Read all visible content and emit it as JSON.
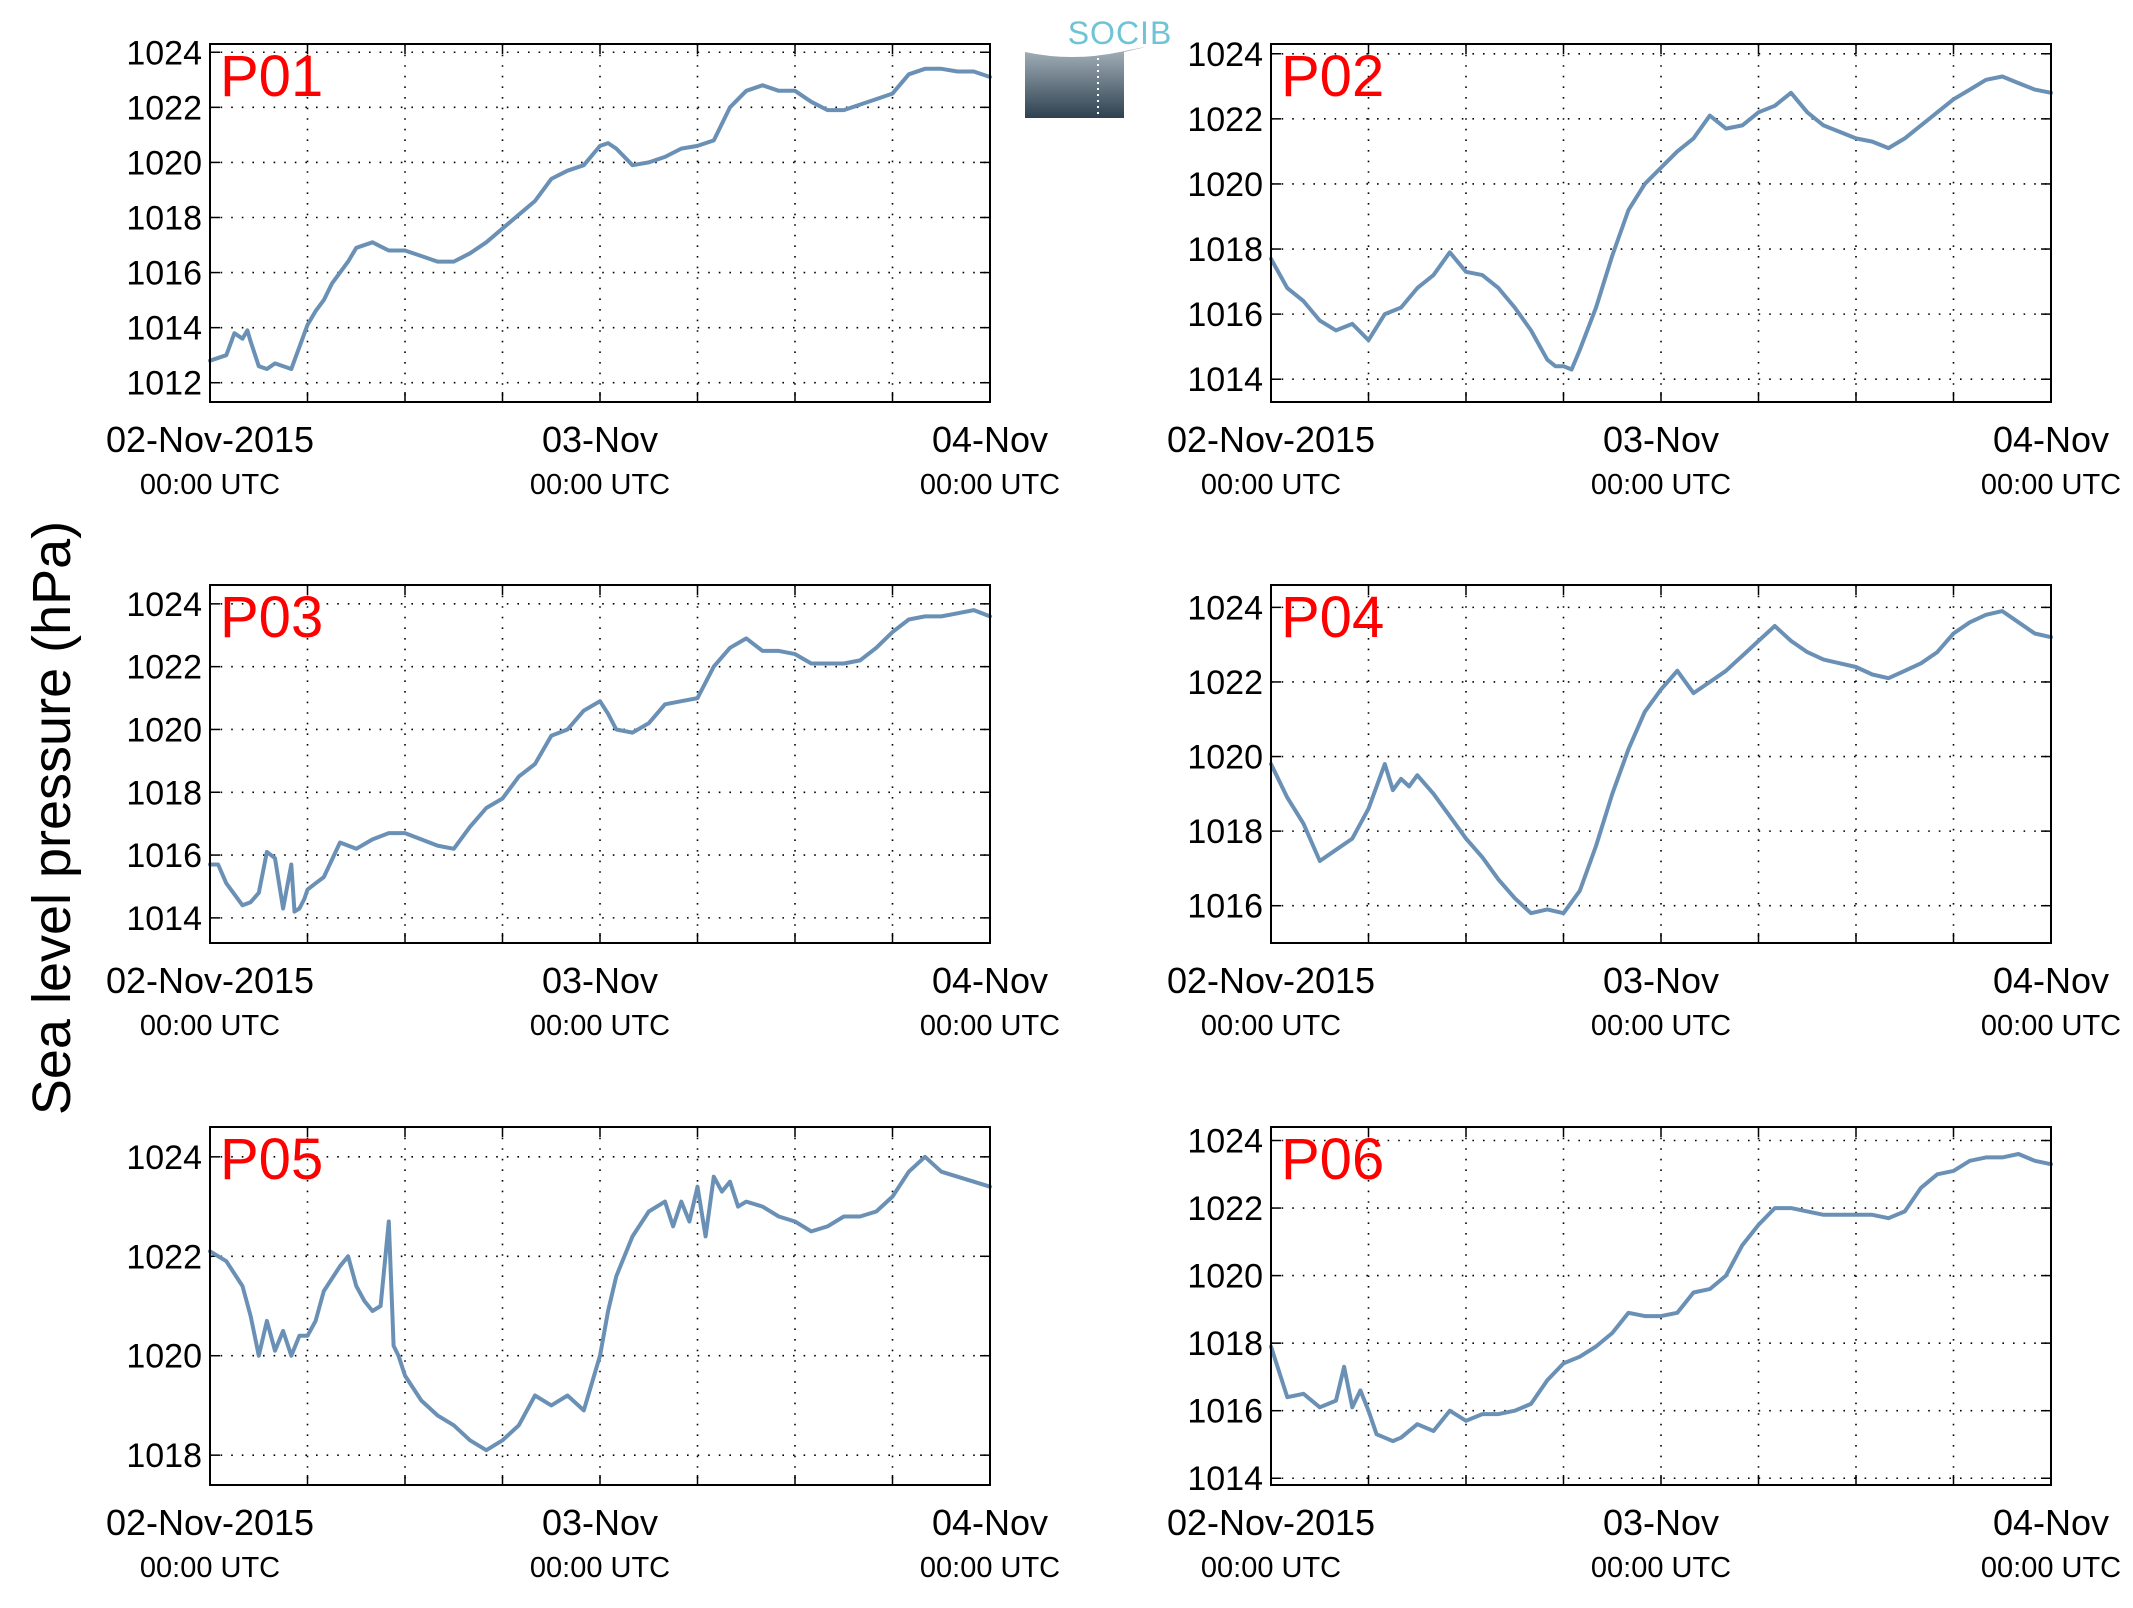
{
  "figure": {
    "ylabel": "Sea level pressure (hPa)",
    "logo_text": "SOCIB",
    "line_color": "#6a91b5",
    "label_color": "#ff0000",
    "x_tick_labels": [
      {
        "date": "02-Nov-2015",
        "time": "00:00 UTC"
      },
      {
        "date": "03-Nov",
        "time": "00:00 UTC"
      },
      {
        "date": "04-Nov",
        "time": "00:00 UTC"
      }
    ]
  },
  "chart_data": [
    {
      "type": "line",
      "label": "P01",
      "xlim": [
        0,
        48
      ],
      "ylim": [
        1011.3,
        1024.3
      ],
      "yticks": [
        1012,
        1014,
        1016,
        1018,
        1020,
        1022,
        1024
      ],
      "x_unit": "hours since 02-Nov-2015 00:00 UTC",
      "series": [
        {
          "x": [
            0,
            1,
            1.5,
            2,
            2.3,
            2.5,
            3,
            3.5,
            4,
            5,
            6,
            6.5,
            7,
            7.5,
            8,
            8.5,
            9,
            10,
            11,
            12,
            13,
            14,
            15,
            16,
            17,
            18,
            19,
            20,
            21,
            22,
            23,
            24,
            24.5,
            25,
            26,
            27,
            28,
            29,
            30,
            31,
            32,
            33,
            34,
            35,
            36,
            37,
            38,
            39,
            40,
            41,
            42,
            43,
            44,
            45,
            46,
            47,
            48
          ],
          "y": [
            1012.8,
            1013,
            1013.8,
            1013.6,
            1013.9,
            1013.5,
            1012.6,
            1012.5,
            1012.7,
            1012.5,
            1014.1,
            1014.6,
            1015,
            1015.6,
            1016,
            1016.4,
            1016.9,
            1017.1,
            1016.8,
            1016.8,
            1016.6,
            1016.4,
            1016.4,
            1016.7,
            1017.1,
            1017.6,
            1018.1,
            1018.6,
            1019.4,
            1019.7,
            1019.9,
            1020.6,
            1020.7,
            1020.5,
            1019.9,
            1020,
            1020.2,
            1020.5,
            1020.6,
            1020.8,
            1022,
            1022.6,
            1022.8,
            1022.6,
            1022.6,
            1022.2,
            1021.9,
            1021.9,
            1022.1,
            1022.3,
            1022.5,
            1023.2,
            1023.4,
            1023.4,
            1023.3,
            1023.3,
            1023.1
          ]
        }
      ]
    },
    {
      "type": "line",
      "label": "P02",
      "xlim": [
        0,
        48
      ],
      "ylim": [
        1013.3,
        1024.3
      ],
      "yticks": [
        1014,
        1016,
        1018,
        1020,
        1022,
        1024
      ],
      "x_unit": "hours since 02-Nov-2015 00:00 UTC",
      "series": [
        {
          "x": [
            0,
            1,
            2,
            3,
            4,
            5,
            6,
            7,
            8,
            9,
            10,
            11,
            12,
            13,
            14,
            15,
            16,
            17,
            17.5,
            18,
            18.5,
            19,
            20,
            21,
            22,
            23,
            24,
            25,
            26,
            27,
            28,
            29,
            30,
            31,
            32,
            33,
            34,
            35,
            36,
            37,
            38,
            39,
            40,
            41,
            42,
            43,
            44,
            45,
            46,
            47,
            48
          ],
          "y": [
            1017.7,
            1016.8,
            1016.4,
            1015.8,
            1015.5,
            1015.7,
            1015.2,
            1016,
            1016.2,
            1016.8,
            1017.2,
            1017.9,
            1017.3,
            1017.2,
            1016.8,
            1016.2,
            1015.5,
            1014.6,
            1014.4,
            1014.4,
            1014.3,
            1014.9,
            1016.2,
            1017.8,
            1019.2,
            1020,
            1020.5,
            1021,
            1021.4,
            1022.1,
            1021.7,
            1021.8,
            1022.2,
            1022.4,
            1022.8,
            1022.2,
            1021.8,
            1021.6,
            1021.4,
            1021.3,
            1021.1,
            1021.4,
            1021.8,
            1022.2,
            1022.6,
            1022.9,
            1023.2,
            1023.3,
            1023.1,
            1022.9,
            1022.8
          ]
        }
      ]
    },
    {
      "type": "line",
      "label": "P03",
      "xlim": [
        0,
        48
      ],
      "ylim": [
        1013.2,
        1024.6
      ],
      "yticks": [
        1014,
        1016,
        1018,
        1020,
        1022,
        1024
      ],
      "x_unit": "hours since 02-Nov-2015 00:00 UTC",
      "series": [
        {
          "x": [
            0,
            0.5,
            1,
            2,
            2.5,
            3,
            3.5,
            4,
            4.5,
            5,
            5.2,
            5.5,
            5.8,
            6,
            6.5,
            7,
            8,
            9,
            10,
            11,
            12,
            13,
            14,
            15,
            16,
            17,
            18,
            19,
            20,
            21,
            22,
            23,
            24,
            24.5,
            25,
            26,
            27,
            28,
            29,
            30,
            31,
            32,
            33,
            34,
            35,
            36,
            37,
            38,
            39,
            40,
            41,
            42,
            43,
            44,
            45,
            46,
            47,
            48
          ],
          "y": [
            1015.7,
            1015.7,
            1015.1,
            1014.4,
            1014.5,
            1014.8,
            1016.1,
            1015.9,
            1014.3,
            1015.7,
            1014.2,
            1014.3,
            1014.6,
            1014.9,
            1015.1,
            1015.3,
            1016.4,
            1016.2,
            1016.5,
            1016.7,
            1016.7,
            1016.5,
            1016.3,
            1016.2,
            1016.9,
            1017.5,
            1017.8,
            1018.5,
            1018.9,
            1019.8,
            1020,
            1020.6,
            1020.9,
            1020.5,
            1020,
            1019.9,
            1020.2,
            1020.8,
            1020.9,
            1021,
            1022,
            1022.6,
            1022.9,
            1022.5,
            1022.5,
            1022.4,
            1022.1,
            1022.1,
            1022.1,
            1022.2,
            1022.6,
            1023.1,
            1023.5,
            1023.6,
            1023.6,
            1023.7,
            1023.8,
            1023.6
          ]
        }
      ]
    },
    {
      "type": "line",
      "label": "P04",
      "xlim": [
        0,
        48
      ],
      "ylim": [
        1015,
        1024.6
      ],
      "yticks": [
        1016,
        1018,
        1020,
        1022,
        1024
      ],
      "x_unit": "hours since 02-Nov-2015 00:00 UTC",
      "series": [
        {
          "x": [
            0,
            1,
            2,
            3,
            4,
            5,
            6,
            7,
            7.5,
            8,
            8.5,
            9,
            10,
            11,
            12,
            13,
            14,
            15,
            16,
            17,
            18,
            19,
            20,
            21,
            22,
            23,
            24,
            25,
            26,
            27,
            28,
            28.5,
            29,
            30,
            31,
            32,
            33,
            34,
            35,
            36,
            37,
            38,
            39,
            40,
            41,
            42,
            43,
            44,
            45,
            46,
            47,
            48
          ],
          "y": [
            1019.8,
            1018.9,
            1018.2,
            1017.2,
            1017.5,
            1017.8,
            1018.6,
            1019.8,
            1019.1,
            1019.4,
            1019.2,
            1019.5,
            1019,
            1018.4,
            1017.8,
            1017.3,
            1016.7,
            1016.2,
            1015.8,
            1015.9,
            1015.8,
            1016.4,
            1017.6,
            1019,
            1020.2,
            1021.2,
            1021.8,
            1022.3,
            1021.7,
            1022,
            1022.3,
            1022.5,
            1022.7,
            1023.1,
            1023.5,
            1023.1,
            1022.8,
            1022.6,
            1022.5,
            1022.4,
            1022.2,
            1022.1,
            1022.3,
            1022.5,
            1022.8,
            1023.3,
            1023.6,
            1023.8,
            1023.9,
            1023.6,
            1023.3,
            1023.2
          ]
        }
      ]
    },
    {
      "type": "line",
      "label": "P05",
      "xlim": [
        0,
        48
      ],
      "ylim": [
        1017.4,
        1024.6
      ],
      "yticks": [
        1018,
        1020,
        1022,
        1024
      ],
      "x_unit": "hours since 02-Nov-2015 00:00 UTC",
      "series": [
        {
          "x": [
            0,
            1,
            2,
            2.5,
            3,
            3.5,
            4,
            4.5,
            5,
            5.5,
            6,
            6.5,
            7,
            8,
            8.5,
            9,
            9.5,
            10,
            10.5,
            11,
            11.3,
            11.6,
            12,
            13,
            14,
            15,
            16,
            17,
            18,
            19,
            20,
            21,
            22,
            23,
            24,
            24.5,
            25,
            26,
            27,
            28,
            28.5,
            29,
            29.5,
            30,
            30.5,
            31,
            31.5,
            32,
            32.5,
            33,
            34,
            35,
            36,
            37,
            38,
            39,
            40,
            41,
            42,
            43,
            44,
            45,
            46,
            47,
            48
          ],
          "y": [
            1022.1,
            1021.9,
            1021.4,
            1020.8,
            1020,
            1020.7,
            1020.1,
            1020.5,
            1020,
            1020.4,
            1020.4,
            1020.7,
            1021.3,
            1021.8,
            1022,
            1021.4,
            1021.1,
            1020.9,
            1021,
            1022.7,
            1020.2,
            1020,
            1019.6,
            1019.1,
            1018.8,
            1018.6,
            1018.3,
            1018.1,
            1018.3,
            1018.6,
            1019.2,
            1019,
            1019.2,
            1018.9,
            1020,
            1020.9,
            1021.6,
            1022.4,
            1022.9,
            1023.1,
            1022.6,
            1023.1,
            1022.7,
            1023.4,
            1022.4,
            1023.6,
            1023.3,
            1023.5,
            1023,
            1023.1,
            1023,
            1022.8,
            1022.7,
            1022.5,
            1022.6,
            1022.8,
            1022.8,
            1022.9,
            1023.2,
            1023.7,
            1024,
            1023.7,
            1023.6,
            1023.5,
            1023.4
          ]
        }
      ]
    },
    {
      "type": "line",
      "label": "P06",
      "xlim": [
        0,
        48
      ],
      "ylim": [
        1013.8,
        1024.4
      ],
      "yticks": [
        1014,
        1016,
        1018,
        1020,
        1022,
        1024
      ],
      "x_unit": "hours since 02-Nov-2015 00:00 UTC",
      "series": [
        {
          "x": [
            0,
            1,
            2,
            3,
            4,
            4.5,
            5,
            5.5,
            6,
            6.5,
            7,
            7.5,
            8,
            9,
            10,
            11,
            12,
            13,
            14,
            15,
            16,
            17,
            18,
            19,
            20,
            21,
            22,
            23,
            24,
            25,
            26,
            27,
            28,
            29,
            30,
            31,
            32,
            33,
            34,
            35,
            36,
            37,
            38,
            39,
            40,
            41,
            42,
            43,
            44,
            45,
            46,
            47,
            48
          ],
          "y": [
            1017.9,
            1016.4,
            1016.5,
            1016.1,
            1016.3,
            1017.3,
            1016.1,
            1016.6,
            1016,
            1015.3,
            1015.2,
            1015.1,
            1015.2,
            1015.6,
            1015.4,
            1016,
            1015.7,
            1015.9,
            1015.9,
            1016,
            1016.2,
            1016.9,
            1017.4,
            1017.6,
            1017.9,
            1018.3,
            1018.9,
            1018.8,
            1018.8,
            1018.9,
            1019.5,
            1019.6,
            1020,
            1020.9,
            1021.5,
            1022,
            1022,
            1021.9,
            1021.8,
            1021.8,
            1021.8,
            1021.8,
            1021.7,
            1021.9,
            1022.6,
            1023,
            1023.1,
            1023.4,
            1023.5,
            1023.5,
            1023.6,
            1023.4,
            1023.3
          ]
        }
      ]
    }
  ]
}
